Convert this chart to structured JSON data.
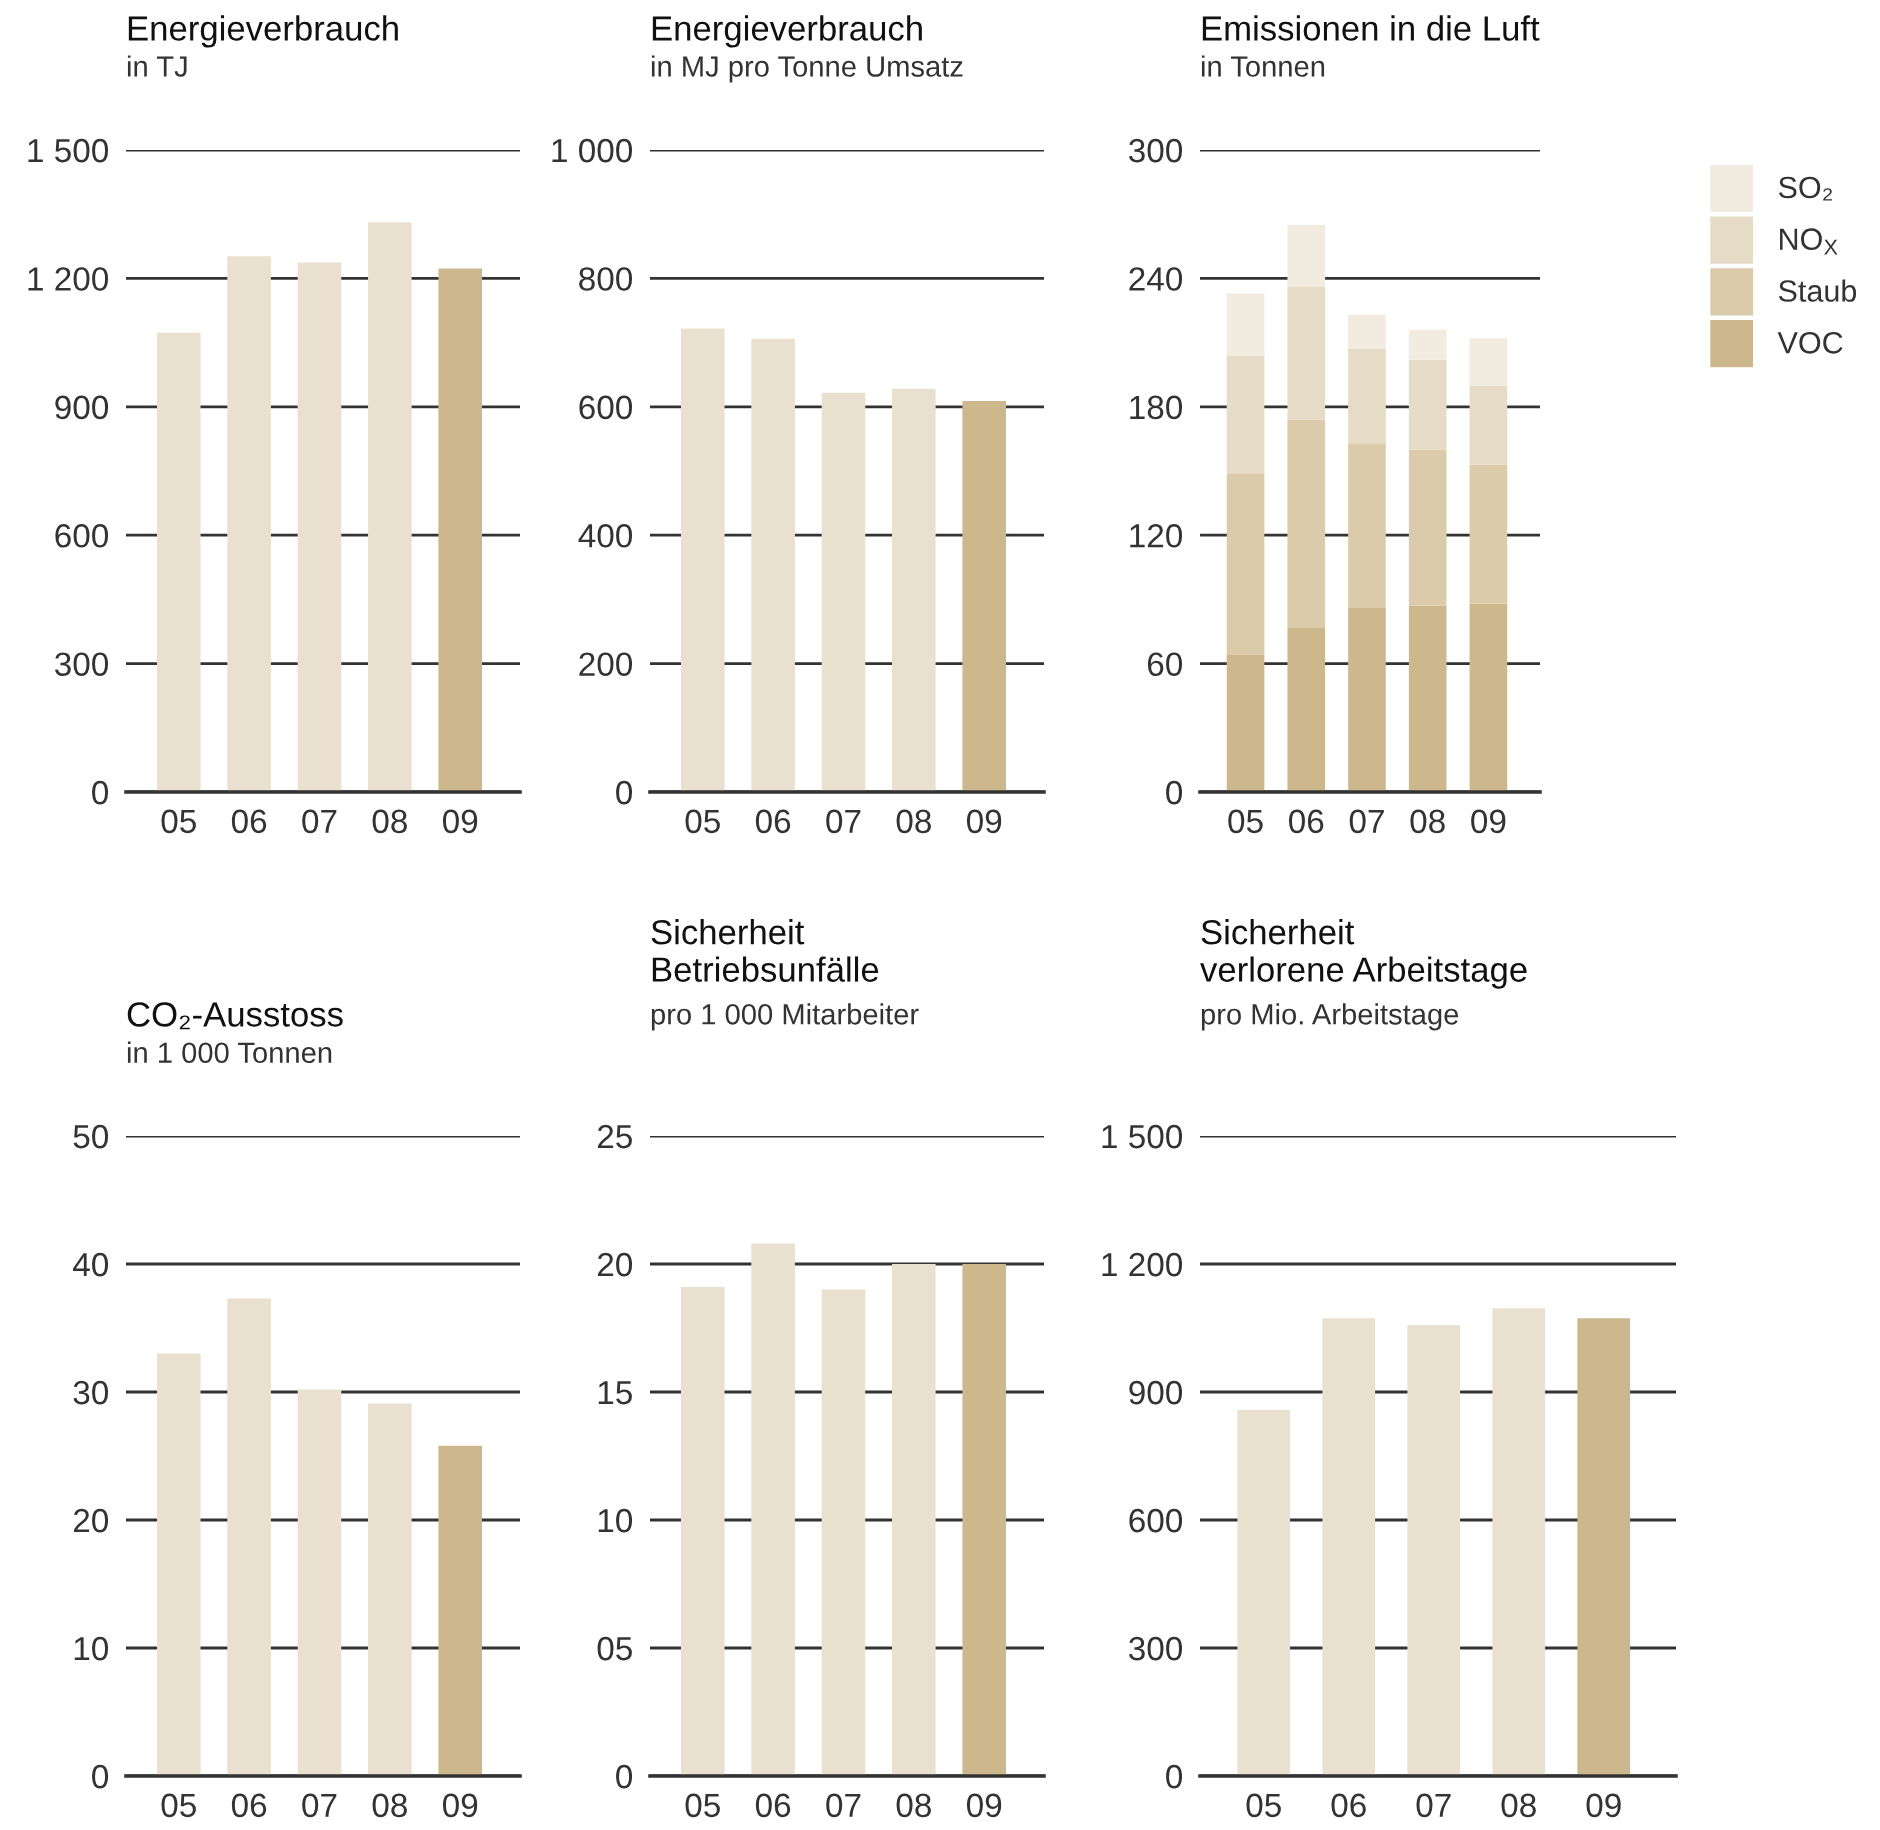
{
  "chart_data": [
    {
      "type": "bar",
      "title": "Energieverbrauch",
      "subtitle": "in TJ",
      "categories": [
        "05",
        "06",
        "07",
        "08",
        "09"
      ],
      "values": [
        1073,
        1252,
        1237,
        1331,
        1223
      ],
      "colors": [
        "#eae0cf",
        "#eae0cf",
        "#eae0cf",
        "#eae0cf",
        "#cdb88e"
      ],
      "ylim": [
        0,
        1500
      ],
      "yticks": [
        0,
        300,
        600,
        900,
        {
          "value": 1200,
          "label": "1 200"
        },
        {
          "value": 1500,
          "label": "1 500"
        }
      ],
      "grid": "y"
    },
    {
      "type": "bar",
      "title": "Energieverbrauch",
      "subtitle": "in MJ pro Tonne Umsatz",
      "categories": [
        "05",
        "06",
        "07",
        "08",
        "09"
      ],
      "values": [
        722,
        706,
        622,
        628,
        609
      ],
      "colors": [
        "#eae0cf",
        "#eae0cf",
        "#eae0cf",
        "#eae0cf",
        "#cdb88e"
      ],
      "ylim": [
        0,
        1000
      ],
      "yticks": [
        0,
        200,
        400,
        600,
        800,
        {
          "value": 1000,
          "label": "1 000"
        }
      ],
      "grid": "y"
    },
    {
      "type": "bar",
      "title": "Emissionen in die Luft",
      "subtitle": "in Tonnen",
      "categories": [
        "05",
        "06",
        "07",
        "08",
        "09"
      ],
      "stacked": true,
      "series": [
        {
          "name": "VOC",
          "color": "#cdb88e",
          "values": [
            64,
            77,
            86,
            87,
            88
          ]
        },
        {
          "name": "Staub",
          "color": "#dccbaa",
          "values": [
            85,
            97,
            77,
            73,
            65
          ]
        },
        {
          "name": "NO$_{X}$",
          "color": "#e6dbc6",
          "values": [
            55,
            62,
            44,
            42,
            37
          ]
        },
        {
          "name": "SO₂",
          "color": "#f2ebdf",
          "values": [
            29,
            29,
            16,
            14,
            22
          ]
        }
      ],
      "ylim": [
        0,
        300
      ],
      "yticks": [
        0,
        60,
        120,
        180,
        240,
        300
      ],
      "grid": "y",
      "legend": "top right"
    },
    {
      "type": "bar",
      "title": "CO₂-Ausstoss",
      "subtitle": "in 1 000 Tonnen",
      "categories": [
        "05",
        "06",
        "07",
        "08",
        "09"
      ],
      "values": [
        33.0,
        37.3,
        30.2,
        29.1,
        25.8
      ],
      "colors": [
        "#eae0cf",
        "#eae0cf",
        "#eae0cf",
        "#eae0cf",
        "#cdb88e"
      ],
      "ylim": [
        0,
        50
      ],
      "yticks": [
        0,
        10,
        20,
        30,
        40,
        50
      ],
      "grid": "y"
    },
    {
      "type": "bar",
      "title": "Sicherheit\nBetriebsunfälle",
      "subtitle": "pro 1 000 Mitarbeiter",
      "categories": [
        "05",
        "06",
        "07",
        "08",
        "09"
      ],
      "values": [
        19.1,
        20.8,
        19.0,
        20.0,
        20.0
      ],
      "colors": [
        "#eae0cf",
        "#eae0cf",
        "#eae0cf",
        "#eae0cf",
        "#cdb88e"
      ],
      "ylim": [
        0,
        25
      ],
      "yticks": [
        0,
        {
          "value": 5,
          "label": "05"
        },
        10,
        15,
        20,
        25
      ],
      "grid": "y"
    },
    {
      "type": "bar",
      "title": "Sicherheit\nverlorene Arbeitstage",
      "subtitle": "pro Mio. Arbeitstage",
      "categories": [
        "05",
        "06",
        "07",
        "08",
        "09"
      ],
      "values": [
        858,
        1073,
        1057,
        1096,
        1073
      ],
      "colors": [
        "#eae0cf",
        "#eae0cf",
        "#eae0cf",
        "#eae0cf",
        "#cdb88e"
      ],
      "ylim": [
        0,
        1500
      ],
      "yticks": [
        0,
        300,
        600,
        900,
        {
          "value": 1200,
          "label": "1 200"
        },
        {
          "value": 1500,
          "label": "1 500"
        }
      ],
      "grid": "y"
    }
  ]
}
